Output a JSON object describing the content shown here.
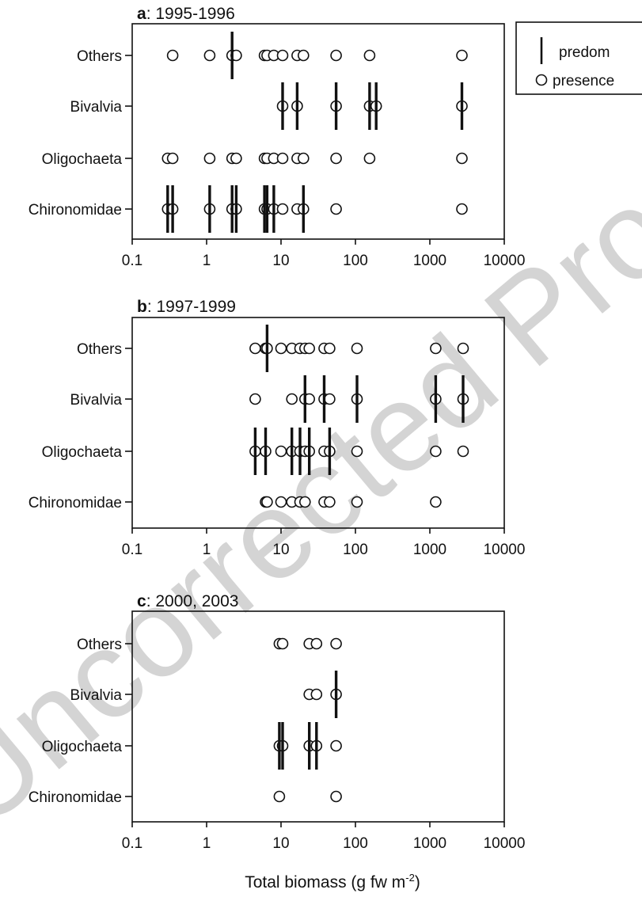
{
  "watermark": "Uncorrected Proof",
  "xlabel": "Total biomass (g fw m",
  "xlabel_sup": "-2",
  "xlabel_close": ")",
  "legend": {
    "predom": "predom",
    "presence": "presence"
  },
  "chart_data": [
    {
      "type": "scatter",
      "panel": "a",
      "title": ": 1995-1996",
      "xscale": "log",
      "xlim": [
        0.1,
        10000
      ],
      "xticks": [
        "0.1",
        "1",
        "10",
        "100",
        "1000",
        "10000"
      ],
      "categories": [
        "Others",
        "Bivalvia",
        "Oligochaeta",
        "Chironomidae"
      ],
      "presence": {
        "Others": [
          0.35,
          1.1,
          2.2,
          2.5,
          6,
          6.5,
          8,
          10.5,
          16.5,
          20,
          55,
          155,
          2700
        ],
        "Bivalvia": [
          10.5,
          16.5,
          55,
          155,
          190,
          2700
        ],
        "Oligochaeta": [
          0.3,
          0.35,
          1.1,
          2.2,
          2.5,
          6,
          6.5,
          8,
          10.5,
          16.5,
          20,
          55,
          155,
          2700
        ],
        "Chironomidae": [
          0.3,
          0.35,
          1.1,
          2.2,
          2.5,
          6,
          6.5,
          8,
          10.5,
          16.5,
          20,
          55,
          2700
        ]
      },
      "predom": {
        "Others": [
          2.2
        ],
        "Bivalvia": [
          10.5,
          16.5,
          55,
          155,
          190,
          2700
        ],
        "Oligochaeta": [],
        "Chironomidae": [
          0.3,
          0.35,
          1.1,
          2.2,
          2.5,
          6,
          6.5,
          8,
          20
        ]
      }
    },
    {
      "type": "scatter",
      "panel": "b",
      "title": ": 1997-1999",
      "xscale": "log",
      "xlim": [
        0.1,
        10000
      ],
      "xticks": [
        "0.1",
        "1",
        "10",
        "100",
        "1000",
        "10000"
      ],
      "categories": [
        "Others",
        "Bivalvia",
        "Oligochaeta",
        "Chironomidae"
      ],
      "presence": {
        "Others": [
          4.5,
          6.2,
          6.5,
          10,
          14,
          18,
          21,
          24,
          38,
          45,
          105,
          1200,
          2800
        ],
        "Bivalvia": [
          4.5,
          14,
          21,
          24,
          38,
          45,
          105,
          1200,
          2800
        ],
        "Oligochaeta": [
          4.5,
          6.2,
          10,
          14,
          18,
          21,
          24,
          38,
          45,
          105,
          1200,
          2800
        ],
        "Chironomidae": [
          6.2,
          6.5,
          10,
          14,
          18,
          21,
          38,
          45,
          105,
          1200
        ]
      },
      "predom": {
        "Others": [
          6.5
        ],
        "Bivalvia": [
          21,
          38,
          105,
          1200,
          2800
        ],
        "Oligochaeta": [
          4.5,
          6.2,
          14,
          18,
          24,
          45
        ],
        "Chironomidae": []
      }
    },
    {
      "type": "scatter",
      "panel": "c",
      "title": ": 2000, 2003",
      "xscale": "log",
      "xlim": [
        0.1,
        10000
      ],
      "xticks": [
        "0.1",
        "1",
        "10",
        "100",
        "1000",
        "10000"
      ],
      "categories": [
        "Others",
        "Bivalvia",
        "Oligochaeta",
        "Chironomidae"
      ],
      "presence": {
        "Others": [
          9.5,
          10.5,
          24,
          30,
          55
        ],
        "Bivalvia": [
          24,
          30,
          55
        ],
        "Oligochaeta": [
          9.5,
          10.5,
          24,
          30,
          55
        ],
        "Chironomidae": [
          9.5,
          55
        ]
      },
      "predom": {
        "Others": [],
        "Bivalvia": [
          55
        ],
        "Oligochaeta": [
          9.5,
          10.5,
          24,
          30
        ],
        "Chironomidae": []
      }
    }
  ]
}
